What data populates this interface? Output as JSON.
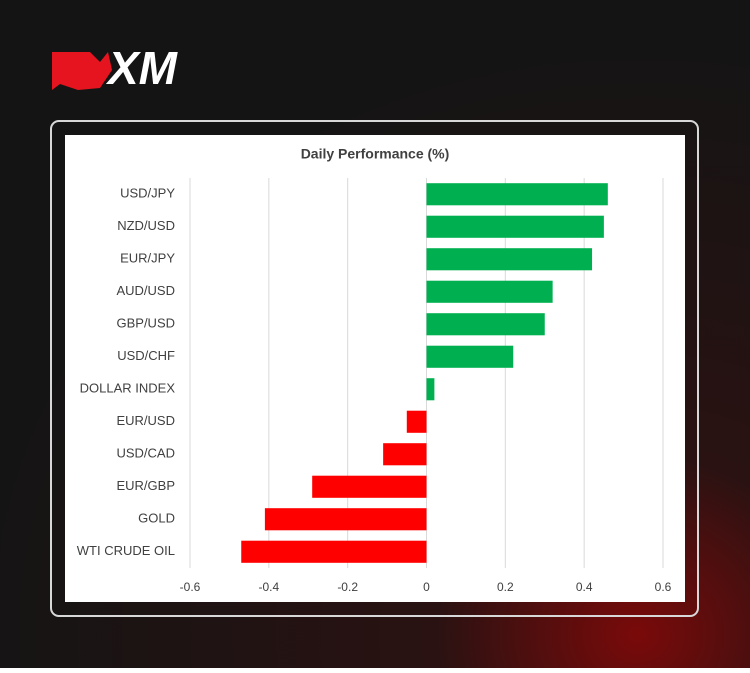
{
  "logo": "XM",
  "chart_data": {
    "type": "bar",
    "orientation": "horizontal",
    "title": "Daily Performance (%)",
    "categories": [
      "USD/JPY",
      "NZD/USD",
      "EUR/JPY",
      "AUD/USD",
      "GBP/USD",
      "USD/CHF",
      "DOLLAR INDEX",
      "EUR/USD",
      "USD/CAD",
      "EUR/GBP",
      "GOLD",
      "WTI CRUDE OIL"
    ],
    "values": [
      0.46,
      0.45,
      0.42,
      0.32,
      0.3,
      0.22,
      0.02,
      -0.05,
      -0.11,
      -0.29,
      -0.41,
      -0.47
    ],
    "colors": [
      "#00b050",
      "#00b050",
      "#00b050",
      "#00b050",
      "#00b050",
      "#00b050",
      "#00b050",
      "#ff0000",
      "#ff0000",
      "#ff0000",
      "#ff0000",
      "#ff0000"
    ],
    "xlim": [
      -0.6,
      0.6
    ],
    "xticks": [
      -0.6,
      -0.4,
      -0.2,
      0,
      0.2,
      0.4,
      0.6
    ],
    "grid": true
  }
}
